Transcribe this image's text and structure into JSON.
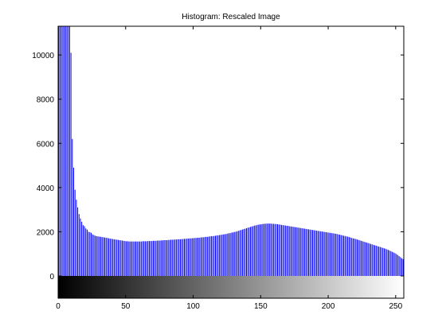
{
  "chart_data": {
    "type": "bar",
    "title": "Histogram: Rescaled Image",
    "xlabel": "",
    "ylabel": "",
    "xlim": [
      0,
      256
    ],
    "ylim": [
      0,
      11300
    ],
    "xticks": [
      0,
      50,
      100,
      150,
      200,
      250
    ],
    "yticks": [
      0,
      2000,
      4000,
      6000,
      8000,
      10000
    ],
    "grid": false,
    "legend": "none",
    "bar_color": "#0000ff",
    "colorbar": "grayscale gradient 0-255 below x-axis",
    "x": [
      0,
      1,
      2,
      3,
      4,
      5,
      6,
      7,
      8,
      9,
      10,
      11,
      12,
      13,
      14,
      15,
      16,
      17,
      18,
      19,
      20,
      21,
      22,
      23,
      24,
      25,
      26,
      27,
      28,
      29,
      30,
      31,
      32,
      33,
      34,
      35,
      36,
      37,
      38,
      39,
      40,
      41,
      42,
      43,
      44,
      45,
      46,
      47,
      48,
      49,
      50,
      51,
      52,
      53,
      54,
      55,
      56,
      57,
      58,
      59,
      60,
      61,
      62,
      63,
      64,
      65,
      66,
      67,
      68,
      69,
      70,
      71,
      72,
      73,
      74,
      75,
      76,
      77,
      78,
      79,
      80,
      81,
      82,
      83,
      84,
      85,
      86,
      87,
      88,
      89,
      90,
      91,
      92,
      93,
      94,
      95,
      96,
      97,
      98,
      99,
      100,
      101,
      102,
      103,
      104,
      105,
      106,
      107,
      108,
      109,
      110,
      111,
      112,
      113,
      114,
      115,
      116,
      117,
      118,
      119,
      120,
      121,
      122,
      123,
      124,
      125,
      126,
      127,
      128,
      129,
      130,
      131,
      132,
      133,
      134,
      135,
      136,
      137,
      138,
      139,
      140,
      141,
      142,
      143,
      144,
      145,
      146,
      147,
      148,
      149,
      150,
      151,
      152,
      153,
      154,
      155,
      156,
      157,
      158,
      159,
      160,
      161,
      162,
      163,
      164,
      165,
      166,
      167,
      168,
      169,
      170,
      171,
      172,
      173,
      174,
      175,
      176,
      177,
      178,
      179,
      180,
      181,
      182,
      183,
      184,
      185,
      186,
      187,
      188,
      189,
      190,
      191,
      192,
      193,
      194,
      195,
      196,
      197,
      198,
      199,
      200,
      201,
      202,
      203,
      204,
      205,
      206,
      207,
      208,
      209,
      210,
      211,
      212,
      213,
      214,
      215,
      216,
      217,
      218,
      219,
      220,
      221,
      222,
      223,
      224,
      225,
      226,
      227,
      228,
      229,
      230,
      231,
      232,
      233,
      234,
      235,
      236,
      237,
      238,
      239,
      240,
      241,
      242,
      243,
      244,
      245,
      246,
      247,
      248,
      249,
      250,
      251,
      252,
      253,
      254,
      255
    ],
    "values": [
      11300,
      11300,
      11300,
      11300,
      11300,
      11300,
      11300,
      11300,
      11300,
      10100,
      6200,
      4900,
      3900,
      3450,
      3100,
      2800,
      2600,
      2450,
      2300,
      2250,
      2150,
      2100,
      2000,
      1980,
      1950,
      1880,
      1850,
      1820,
      1800,
      1790,
      1780,
      1770,
      1760,
      1750,
      1740,
      1730,
      1720,
      1700,
      1690,
      1680,
      1670,
      1660,
      1650,
      1640,
      1630,
      1620,
      1610,
      1600,
      1590,
      1580,
      1570,
      1570,
      1560,
      1560,
      1560,
      1560,
      1560,
      1560,
      1560,
      1560,
      1560,
      1560,
      1570,
      1570,
      1570,
      1570,
      1580,
      1580,
      1580,
      1580,
      1590,
      1590,
      1590,
      1600,
      1600,
      1600,
      1610,
      1610,
      1620,
      1620,
      1620,
      1630,
      1630,
      1640,
      1640,
      1640,
      1650,
      1650,
      1660,
      1660,
      1660,
      1670,
      1670,
      1680,
      1680,
      1690,
      1690,
      1700,
      1700,
      1710,
      1710,
      1720,
      1720,
      1730,
      1730,
      1740,
      1750,
      1750,
      1760,
      1770,
      1770,
      1780,
      1790,
      1800,
      1800,
      1810,
      1820,
      1830,
      1840,
      1850,
      1860,
      1870,
      1880,
      1890,
      1900,
      1920,
      1930,
      1940,
      1960,
      1970,
      1990,
      2000,
      2020,
      2040,
      2060,
      2080,
      2100,
      2120,
      2140,
      2160,
      2180,
      2200,
      2220,
      2240,
      2260,
      2280,
      2290,
      2310,
      2320,
      2330,
      2340,
      2350,
      2360,
      2360,
      2370,
      2370,
      2370,
      2370,
      2360,
      2360,
      2350,
      2350,
      2340,
      2330,
      2320,
      2310,
      2300,
      2290,
      2280,
      2270,
      2260,
      2250,
      2240,
      2230,
      2220,
      2210,
      2200,
      2190,
      2180,
      2170,
      2160,
      2150,
      2140,
      2130,
      2120,
      2110,
      2100,
      2090,
      2080,
      2070,
      2060,
      2050,
      2040,
      2030,
      2020,
      2010,
      2000,
      1990,
      1980,
      1970,
      1960,
      1950,
      1940,
      1930,
      1920,
      1910,
      1900,
      1880,
      1870,
      1850,
      1840,
      1820,
      1810,
      1790,
      1780,
      1760,
      1740,
      1720,
      1700,
      1690,
      1670,
      1650,
      1630,
      1610,
      1590,
      1570,
      1550,
      1530,
      1510,
      1490,
      1470,
      1450,
      1430,
      1410,
      1390,
      1370,
      1350,
      1330,
      1310,
      1290,
      1270,
      1250,
      1230,
      1200,
      1180,
      1150,
      1120,
      1090,
      1060,
      1030,
      990,
      950,
      900,
      850,
      800,
      760
    ]
  }
}
